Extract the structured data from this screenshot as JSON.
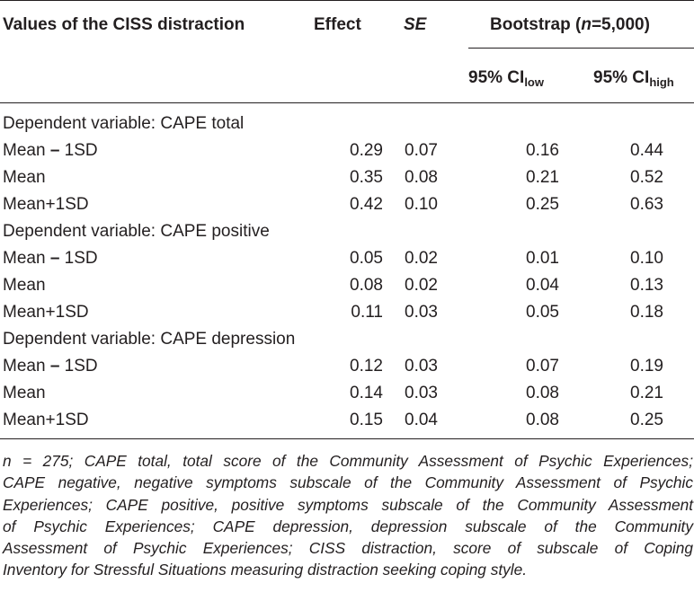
{
  "header": {
    "col0": "Values of the CISS distraction",
    "col1": "Effect",
    "col2": "SE",
    "boot_pre": "Bootstrap (",
    "boot_n": "n",
    "boot_post": "=5,000)",
    "ci_low_base": "95% CI",
    "ci_low_sub": "low",
    "ci_high_base": "95% CI",
    "ci_high_sub": "high"
  },
  "sections": [
    {
      "label": "Dependent variable: CAPE total",
      "rows": [
        {
          "pre": "Mean ",
          "dash": "–",
          "post": " 1SD",
          "effect": "0.29",
          "se": "0.07",
          "low": "0.16",
          "high": "0.44"
        },
        {
          "pre": "Mean",
          "dash": "",
          "post": "",
          "effect": "0.35",
          "se": "0.08",
          "low": "0.21",
          "high": "0.52"
        },
        {
          "pre": "Mean+1SD",
          "dash": "",
          "post": "",
          "effect": "0.42",
          "se": "0.10",
          "low": "0.25",
          "high": "0.63"
        }
      ]
    },
    {
      "label": "Dependent variable: CAPE positive",
      "rows": [
        {
          "pre": "Mean ",
          "dash": "–",
          "post": " 1SD",
          "effect": "0.05",
          "se": "0.02",
          "low": "0.01",
          "high": "0.10"
        },
        {
          "pre": "Mean",
          "dash": "",
          "post": "",
          "effect": "0.08",
          "se": "0.02",
          "low": "0.04",
          "high": "0.13"
        },
        {
          "pre": "Mean+1SD",
          "dash": "",
          "post": "",
          "effect": "0.11",
          "se": "0.03",
          "low": "0.05",
          "high": "0.18"
        }
      ]
    },
    {
      "label": "Dependent variable: CAPE depression",
      "rows": [
        {
          "pre": "Mean ",
          "dash": "–",
          "post": " 1SD",
          "effect": "0.12",
          "se": "0.03",
          "low": "0.07",
          "high": "0.19"
        },
        {
          "pre": "Mean",
          "dash": "",
          "post": "",
          "effect": "0.14",
          "se": "0.03",
          "low": "0.08",
          "high": "0.21"
        },
        {
          "pre": "Mean+1SD",
          "dash": "",
          "post": "",
          "effect": "0.15",
          "se": "0.04",
          "low": "0.08",
          "high": "0.25"
        }
      ]
    }
  ],
  "footnote": [
    "n = 275; CAPE total, total score of the Community Assessment of Psychic Experiences;",
    "CAPE negative, negative symptoms subscale of the Community Assessment of Psychic",
    "Experiences; CAPE positive, positive symptoms subscale of the Community Assessment",
    "of Psychic Experiences; CAPE depression, depression subscale of the Community",
    "Assessment of Psychic Experiences; CISS distraction, score of subscale of Coping",
    "Inventory for Stressful Situations measuring distraction seeking coping style."
  ]
}
